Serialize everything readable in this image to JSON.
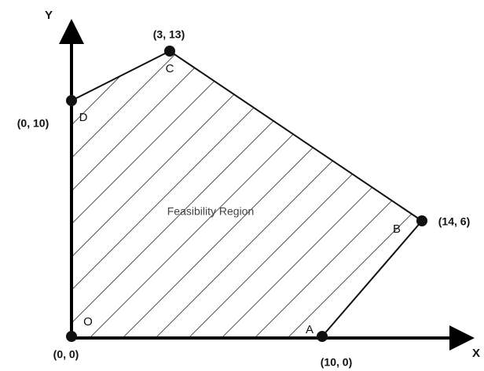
{
  "axes": {
    "y_label": "Y",
    "x_label": "X"
  },
  "region_label": "Feasibility Region",
  "points": [
    {
      "name": "O",
      "coords": "(0, 0)"
    },
    {
      "name": "A",
      "coords": "(10, 0)"
    },
    {
      "name": "B",
      "coords": "(14, 6)"
    },
    {
      "name": "C",
      "coords": "(3, 13)"
    },
    {
      "name": "D",
      "coords": "(0, 10)"
    }
  ]
}
